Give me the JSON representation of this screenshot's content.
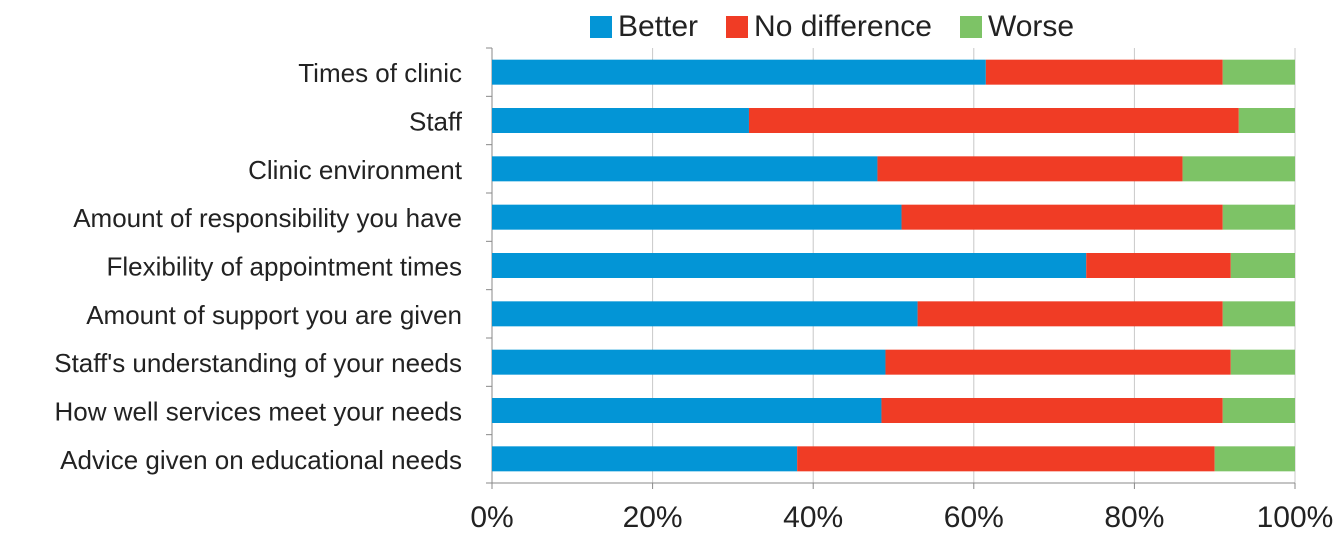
{
  "chart_data": {
    "type": "bar",
    "orientation": "horizontal",
    "stacked": "percent",
    "categories": [
      "Times of clinic",
      "Staff",
      "Clinic environment",
      "Amount of responsibility you have",
      "Flexibility of appointment times",
      "Amount of support you are given",
      "Staff's understanding of your needs",
      "How well services meet your needs",
      "Advice given on educational needs"
    ],
    "series": [
      {
        "name": "Better",
        "color": "#0395d6",
        "values": [
          61.5,
          32,
          48,
          51,
          74,
          53,
          49,
          48.5,
          38
        ]
      },
      {
        "name": "No difference",
        "color": "#f03c25",
        "values": [
          29.5,
          61,
          38,
          40,
          18,
          38,
          43,
          42.5,
          52
        ]
      },
      {
        "name": "Worse",
        "color": "#7dc366",
        "values": [
          9,
          7,
          14,
          9,
          8,
          9,
          8,
          9,
          10
        ]
      }
    ],
    "x_ticks": [
      "0%",
      "20%",
      "40%",
      "60%",
      "80%",
      "100%"
    ],
    "xlim": [
      0,
      100
    ],
    "legend_position": "top",
    "grid": true
  }
}
